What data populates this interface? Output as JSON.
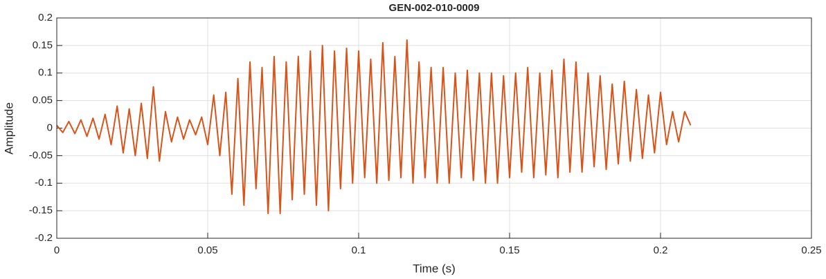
{
  "chart_data": {
    "type": "line",
    "title": "GEN-002-010-0009",
    "x_label": "Time (s)",
    "y_label": "Amplitude",
    "color": "#d95319",
    "grid": true,
    "xlim": [
      0,
      0.25
    ],
    "xticks": [
      0,
      0.05,
      0.1,
      0.15,
      0.2,
      0.25
    ],
    "ylim": [
      -0.2,
      0.2
    ],
    "yticks": [
      -0.2,
      -0.15,
      -0.1,
      -0.05,
      0,
      0.05,
      0.1,
      0.15,
      0.2
    ],
    "x": [
      0,
      0.002,
      0.004,
      0.006,
      0.008,
      0.01,
      0.012,
      0.014,
      0.016,
      0.018,
      0.02,
      0.022,
      0.024,
      0.026,
      0.028,
      0.03,
      0.032,
      0.034,
      0.036,
      0.038,
      0.04,
      0.042,
      0.044,
      0.046,
      0.048,
      0.05,
      0.052,
      0.054,
      0.056,
      0.058,
      0.06,
      0.062,
      0.064,
      0.066,
      0.068,
      0.07,
      0.072,
      0.074,
      0.076,
      0.078,
      0.08,
      0.082,
      0.084,
      0.086,
      0.088,
      0.09,
      0.092,
      0.094,
      0.096,
      0.098,
      0.1,
      0.102,
      0.104,
      0.106,
      0.108,
      0.11,
      0.112,
      0.114,
      0.116,
      0.118,
      0.12,
      0.122,
      0.124,
      0.126,
      0.128,
      0.13,
      0.132,
      0.134,
      0.136,
      0.138,
      0.14,
      0.142,
      0.144,
      0.146,
      0.148,
      0.15,
      0.152,
      0.154,
      0.156,
      0.158,
      0.16,
      0.162,
      0.164,
      0.166,
      0.168,
      0.17,
      0.172,
      0.174,
      0.176,
      0.178,
      0.18,
      0.182,
      0.184,
      0.186,
      0.188,
      0.19,
      0.192,
      0.194,
      0.196,
      0.198,
      0.2,
      0.202,
      0.204,
      0.206,
      0.208,
      0.21
    ],
    "values": [
      0.005,
      -0.008,
      0.012,
      -0.01,
      0.015,
      -0.015,
      0.018,
      -0.02,
      0.025,
      -0.03,
      0.04,
      -0.045,
      0.035,
      -0.05,
      0.045,
      -0.055,
      0.075,
      -0.06,
      0.03,
      -0.025,
      0.02,
      -0.02,
      0.015,
      -0.012,
      0.02,
      -0.03,
      0.06,
      -0.05,
      0.065,
      -0.12,
      0.09,
      -0.14,
      0.12,
      -0.11,
      0.11,
      -0.155,
      0.13,
      -0.155,
      0.12,
      -0.13,
      0.13,
      -0.12,
      0.14,
      -0.14,
      0.15,
      -0.15,
      0.14,
      -0.11,
      0.145,
      -0.1,
      0.14,
      -0.09,
      0.125,
      -0.1,
      0.155,
      -0.095,
      0.13,
      -0.09,
      0.16,
      -0.1,
      0.12,
      -0.09,
      0.11,
      -0.1,
      0.11,
      -0.1,
      0.1,
      -0.09,
      0.105,
      -0.095,
      0.1,
      -0.1,
      0.1,
      -0.1,
      0.095,
      -0.09,
      0.1,
      -0.08,
      0.11,
      -0.09,
      0.1,
      -0.085,
      0.105,
      -0.09,
      0.125,
      -0.08,
      0.12,
      -0.08,
      0.1,
      -0.07,
      0.095,
      -0.075,
      0.08,
      -0.065,
      0.085,
      -0.06,
      0.07,
      -0.055,
      0.06,
      -0.045,
      0.065,
      -0.03,
      0.03,
      -0.025,
      0.03,
      0.005
    ]
  }
}
